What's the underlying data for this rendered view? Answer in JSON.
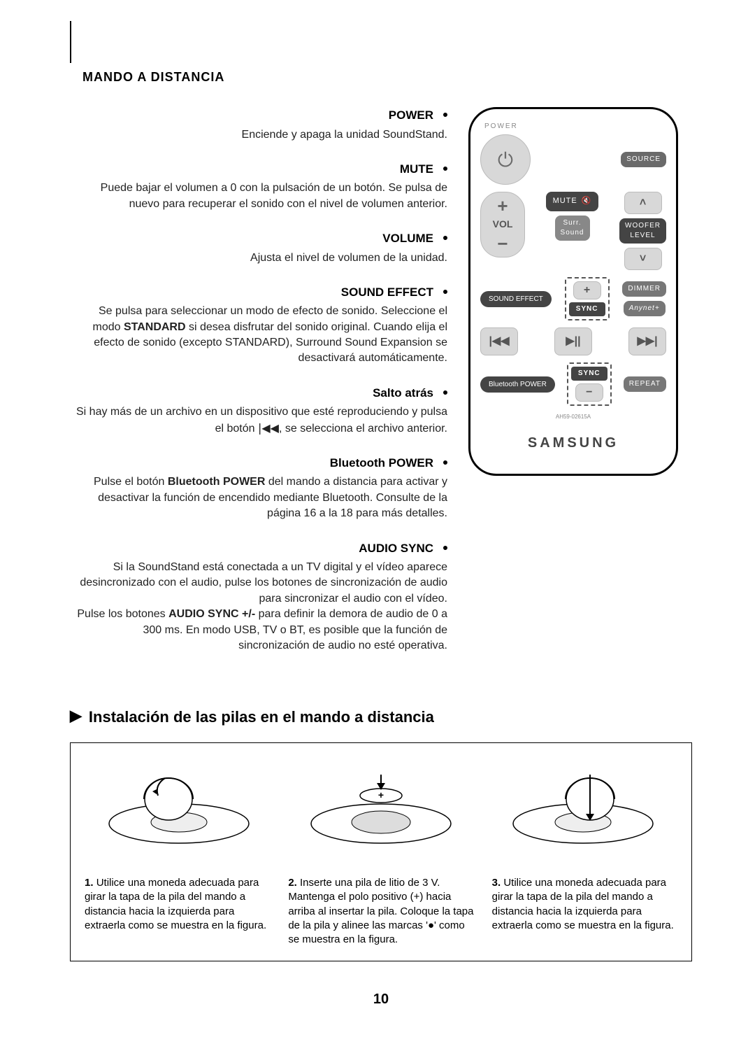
{
  "section_title": "MANDO A DISTANCIA",
  "descriptions": [
    {
      "title": "POWER",
      "body": "Enciende y apaga la unidad SoundStand."
    },
    {
      "title": "MUTE",
      "body": "Puede bajar el volumen a 0 con la pulsación de un botón. Se pulsa de nuevo para recuperar el sonido con el nivel de volumen anterior."
    },
    {
      "title": "VOLUME",
      "body": "Ajusta el nivel de volumen de la unidad."
    },
    {
      "title": "SOUND EFFECT",
      "body_html": "Se pulsa para seleccionar un modo de efecto de sonido. Seleccione el modo <strong>STANDARD</strong> si desea disfrutar del sonido original. Cuando elija el efecto de sonido (excepto STANDARD), Surround Sound Expansion se desactivará automáticamente."
    },
    {
      "title": "Salto atrás",
      "body_html": "Si hay más de un archivo en un dispositivo que esté reproduciendo y pulsa el botón <span class='inline-icon'>|◀◀</span>, se selecciona el archivo anterior."
    },
    {
      "title": "Bluetooth POWER",
      "body_html": "Pulse el botón <strong>Bluetooth POWER</strong> del mando a distancia para activar y desactivar la función de encendido mediante Bluetooth. Consulte de la página 16 a la 18 para más detalles."
    },
    {
      "title": "AUDIO SYNC",
      "body_html": "Si la SoundStand está conectada a un TV digital y el vídeo aparece desincronizado con el audio, pulse los botones de sincronización de audio para sincronizar el audio con el vídeo.<br>Pulse los botones <strong>AUDIO SYNC +/-</strong> para definir la demora de audio de 0 a 300 ms. En modo USB, TV o BT, es posible que la función de sincronización de audio no esté operativa."
    }
  ],
  "remote": {
    "header": "POWER",
    "source": "SOURCE",
    "mute": "MUTE",
    "woofer": "WOOFER",
    "level": "LEVEL",
    "vol": "VOL",
    "surr": "Surr.",
    "sound": "Sound",
    "sound_effect": "SOUND EFFECT",
    "sync_label": "SYNC",
    "bt_power": "Bluetooth POWER",
    "repeat": "REPEAT",
    "dimmer": "DIMMER",
    "anynet": "Anynet+",
    "brand": "SAMSUNG",
    "model": "AH59-02615A"
  },
  "install": {
    "heading": "Instalación de las pilas en el mando a distancia",
    "steps": [
      {
        "num": "1.",
        "text": "Utilice una moneda adecuada para girar la tapa de la pila del mando a distancia hacia la izquierda para extraerla como se muestra en la figura."
      },
      {
        "num": "2.",
        "text": "Inserte una pila de litio de 3 V. Mantenga el polo positivo (+) hacia arriba al insertar la pila. Coloque la tapa de la pila y alinee las marcas '●' como se muestra en la figura."
      },
      {
        "num": "3.",
        "text": "Utilice una moneda adecuada para girar la tapa de la pila del mando a distancia hacia la izquierda para extraerla como se muestra en la figura."
      }
    ]
  },
  "page_number": "10"
}
